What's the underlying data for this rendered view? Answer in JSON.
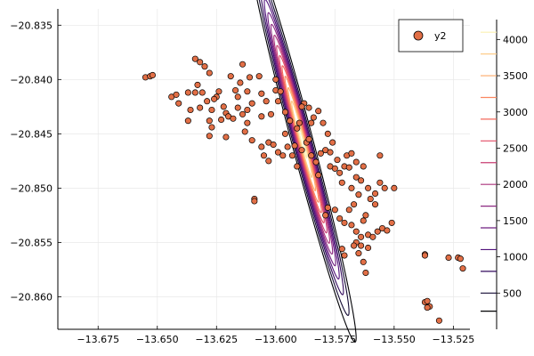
{
  "chart_data": {
    "type": "scatter",
    "title": "",
    "xlabel": "",
    "ylabel": "",
    "xlim": [
      -13.692,
      -13.518
    ],
    "ylim": [
      -20.863,
      -20.8335
    ],
    "x_ticks": [
      -13.675,
      -13.65,
      -13.625,
      -13.6,
      -13.575,
      -13.55,
      -13.525
    ],
    "x_tick_labels": [
      "−13.675",
      "−13.650",
      "−13.625",
      "−13.600",
      "−13.575",
      "−13.550",
      "−13.525"
    ],
    "y_ticks": [
      -20.835,
      -20.84,
      -20.845,
      -20.85,
      -20.855,
      -20.86
    ],
    "y_tick_labels": [
      "−20.835",
      "−20.840",
      "−20.845",
      "−20.850",
      "−20.855",
      "−20.860"
    ],
    "grid": true,
    "legend": {
      "position": "top-right",
      "entries": [
        {
          "label": "y2",
          "color": "#e26f46"
        }
      ]
    },
    "series": [
      {
        "name": "y2",
        "color": "#e26f46",
        "points": [
          [
            -13.655,
            -20.8398
          ],
          [
            -13.653,
            -20.8397
          ],
          [
            -13.652,
            -20.8396
          ],
          [
            -13.644,
            -20.8416
          ],
          [
            -13.641,
            -20.8422
          ],
          [
            -13.642,
            -20.8414
          ],
          [
            -13.637,
            -20.8412
          ],
          [
            -13.636,
            -20.8428
          ],
          [
            -13.634,
            -20.8381
          ],
          [
            -13.632,
            -20.8384
          ],
          [
            -13.63,
            -20.8388
          ],
          [
            -13.633,
            -20.8405
          ],
          [
            -13.631,
            -20.8412
          ],
          [
            -13.628,
            -20.8394
          ],
          [
            -13.629,
            -20.842
          ],
          [
            -13.627,
            -20.8428
          ],
          [
            -13.628,
            -20.8438
          ],
          [
            -13.634,
            -20.8412
          ],
          [
            -13.625,
            -20.8416
          ],
          [
            -13.624,
            -20.8411
          ],
          [
            -13.622,
            -20.8425
          ],
          [
            -13.623,
            -20.8437
          ],
          [
            -13.621,
            -20.8431
          ],
          [
            -13.62,
            -20.8434
          ],
          [
            -13.618,
            -20.8436
          ],
          [
            -13.619,
            -20.8397
          ],
          [
            -13.617,
            -20.841
          ],
          [
            -13.616,
            -20.8416
          ],
          [
            -13.615,
            -20.8403
          ],
          [
            -13.614,
            -20.8386
          ],
          [
            -13.612,
            -20.8411
          ],
          [
            -13.612,
            -20.8428
          ],
          [
            -13.61,
            -20.8422
          ],
          [
            -13.607,
            -20.8397
          ],
          [
            -13.606,
            -20.8413
          ],
          [
            -13.604,
            -20.842
          ],
          [
            -13.602,
            -20.8432
          ],
          [
            -13.6,
            -20.84
          ],
          [
            -13.6,
            -20.841
          ],
          [
            -13.599,
            -20.842
          ],
          [
            -13.596,
            -20.843
          ],
          [
            -13.594,
            -20.8438
          ],
          [
            -13.591,
            -20.8445
          ],
          [
            -13.603,
            -20.8458
          ],
          [
            -13.606,
            -20.8462
          ],
          [
            -13.605,
            -20.847
          ],
          [
            -13.603,
            -20.8475
          ],
          [
            -13.61,
            -20.8456
          ],
          [
            -13.612,
            -20.844
          ],
          [
            -13.613,
            -20.8448
          ],
          [
            -13.601,
            -20.846
          ],
          [
            -13.599,
            -20.8467
          ],
          [
            -13.597,
            -20.847
          ],
          [
            -13.595,
            -20.8462
          ],
          [
            -13.593,
            -20.847
          ],
          [
            -13.591,
            -20.848
          ],
          [
            -13.589,
            -20.8465
          ],
          [
            -13.587,
            -20.8458
          ],
          [
            -13.585,
            -20.847
          ],
          [
            -13.583,
            -20.8476
          ],
          [
            -13.581,
            -20.8468
          ],
          [
            -13.579,
            -20.8465
          ],
          [
            -13.582,
            -20.8429
          ],
          [
            -13.584,
            -20.8435
          ],
          [
            -13.586,
            -20.8426
          ],
          [
            -13.588,
            -20.8422
          ],
          [
            -13.59,
            -20.844
          ],
          [
            -13.58,
            -20.844
          ],
          [
            -13.578,
            -20.845
          ],
          [
            -13.576,
            -20.8458
          ],
          [
            -13.577,
            -20.848
          ],
          [
            -13.575,
            -20.8482
          ],
          [
            -13.573,
            -20.8486
          ],
          [
            -13.571,
            -20.848
          ],
          [
            -13.57,
            -20.847
          ],
          [
            -13.568,
            -20.8468
          ],
          [
            -13.566,
            -20.8476
          ],
          [
            -13.566,
            -20.849
          ],
          [
            -13.564,
            -20.8493
          ],
          [
            -13.563,
            -20.848
          ],
          [
            -13.561,
            -20.85
          ],
          [
            -13.56,
            -20.851
          ],
          [
            -13.558,
            -20.8505
          ],
          [
            -13.556,
            -20.8495
          ],
          [
            -13.554,
            -20.85
          ],
          [
            -13.565,
            -20.8506
          ],
          [
            -13.567,
            -20.8515
          ],
          [
            -13.569,
            -20.852
          ],
          [
            -13.571,
            -20.8532
          ],
          [
            -13.573,
            -20.8528
          ],
          [
            -13.575,
            -20.852
          ],
          [
            -13.578,
            -20.8518
          ],
          [
            -13.579,
            -20.8525
          ],
          [
            -13.568,
            -20.8534
          ],
          [
            -13.566,
            -20.854
          ],
          [
            -13.564,
            -20.8545
          ],
          [
            -13.561,
            -20.8543
          ],
          [
            -13.559,
            -20.8545
          ],
          [
            -13.557,
            -20.854
          ],
          [
            -13.555,
            -20.8537
          ],
          [
            -13.553,
            -20.8539
          ],
          [
            -13.562,
            -20.8525
          ],
          [
            -13.563,
            -20.853
          ],
          [
            -13.566,
            -20.855
          ],
          [
            -13.567,
            -20.8553
          ],
          [
            -13.565,
            -20.856
          ],
          [
            -13.564,
            -20.8553
          ],
          [
            -13.563,
            -20.8568
          ],
          [
            -13.571,
            -20.8562
          ],
          [
            -13.572,
            -20.8556
          ],
          [
            -13.562,
            -20.8578
          ],
          [
            -13.561,
            -20.8555
          ],
          [
            -13.609,
            -20.851
          ],
          [
            -13.609,
            -20.8512
          ],
          [
            -13.621,
            -20.8453
          ],
          [
            -13.627,
            -20.8444
          ],
          [
            -13.628,
            -20.8452
          ],
          [
            -13.637,
            -20.8438
          ],
          [
            -13.611,
            -20.8398
          ],
          [
            -13.598,
            -20.8411
          ],
          [
            -13.589,
            -20.8425
          ],
          [
            -13.585,
            -20.844
          ],
          [
            -13.577,
            -20.8467
          ],
          [
            -13.574,
            -20.8474
          ],
          [
            -13.569,
            -20.8481
          ],
          [
            -13.586,
            -20.8455
          ],
          [
            -13.596,
            -20.845
          ],
          [
            -13.606,
            -20.8434
          ],
          [
            -13.616,
            -20.8426
          ],
          [
            -13.626,
            -20.8418
          ],
          [
            -13.632,
            -20.8426
          ],
          [
            -13.614,
            -20.8432
          ],
          [
            -13.592,
            -20.8461
          ],
          [
            -13.582,
            -20.8488
          ],
          [
            -13.572,
            -20.8495
          ],
          [
            -13.568,
            -20.85
          ],
          [
            -13.558,
            -20.8515
          ],
          [
            -13.551,
            -20.8532
          ],
          [
            -13.537,
            -20.8561
          ],
          [
            -13.537,
            -20.8562
          ],
          [
            -13.523,
            -20.8564
          ],
          [
            -13.522,
            -20.8565
          ],
          [
            -13.527,
            -20.8564
          ],
          [
            -13.521,
            -20.8574
          ],
          [
            -13.537,
            -20.8605
          ],
          [
            -13.536,
            -20.8604
          ],
          [
            -13.535,
            -20.8609
          ],
          [
            -13.536,
            -20.861
          ],
          [
            -13.531,
            -20.8622
          ],
          [
            -13.55,
            -20.85
          ],
          [
            -13.556,
            -20.847
          ]
        ]
      }
    ],
    "contour": {
      "center": [
        -13.589,
        -20.8455
      ],
      "principal_angle_deg": -39,
      "sigma_major": 0.0124,
      "sigma_minor": 0.00125,
      "peak": 4200,
      "levels": [
        250,
        500,
        800,
        1100,
        1400,
        1700,
        2000,
        2300,
        2600,
        2900,
        3200,
        3500,
        3800,
        4100
      ],
      "colors": [
        "#000004",
        "#140b34",
        "#32095d",
        "#51127c",
        "#6e1f81",
        "#8c2981",
        "#ab337c",
        "#c83e73",
        "#e24d66",
        "#f4685c",
        "#fb8761",
        "#feab6b",
        "#fdcd8b",
        "#fcf1b1"
      ]
    },
    "colorbar": {
      "range": [
        0,
        4250
      ],
      "ticks": [
        500,
        1000,
        1500,
        2000,
        2500,
        3000,
        3500,
        4000
      ],
      "tick_labels": [
        "500",
        "1000",
        "1500",
        "2000",
        "2500",
        "3000",
        "3500",
        "4000"
      ]
    }
  }
}
